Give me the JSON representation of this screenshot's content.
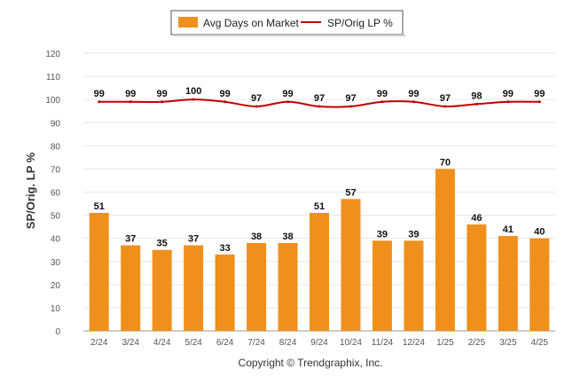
{
  "chart_data": {
    "type": "bar",
    "categories": [
      "2/24",
      "3/24",
      "4/24",
      "5/24",
      "6/24",
      "7/24",
      "8/24",
      "9/24",
      "10/24",
      "11/24",
      "12/24",
      "1/25",
      "2/25",
      "3/25",
      "4/25"
    ],
    "series": [
      {
        "name": "Avg Days on Market",
        "type": "bar",
        "color": "#F0901C",
        "values": [
          51,
          37,
          35,
          37,
          33,
          38,
          38,
          51,
          57,
          39,
          39,
          70,
          46,
          41,
          40
        ]
      },
      {
        "name": "SP/Orig LP %",
        "type": "line",
        "color": "#C00000",
        "values": [
          99,
          99,
          99,
          100,
          99,
          97,
          99,
          97,
          97,
          99,
          99,
          97,
          98,
          99,
          99
        ]
      }
    ],
    "ylabel": "SP/Orig. LP %",
    "xlabel": "",
    "ylim": [
      0,
      120
    ],
    "yticks": [
      0,
      10,
      20,
      30,
      40,
      50,
      60,
      70,
      80,
      90,
      100,
      110,
      120
    ],
    "grid": true,
    "legend_position": "top-center"
  },
  "footer": {
    "copyright": "Copyright © Trendgraphix, Inc."
  }
}
